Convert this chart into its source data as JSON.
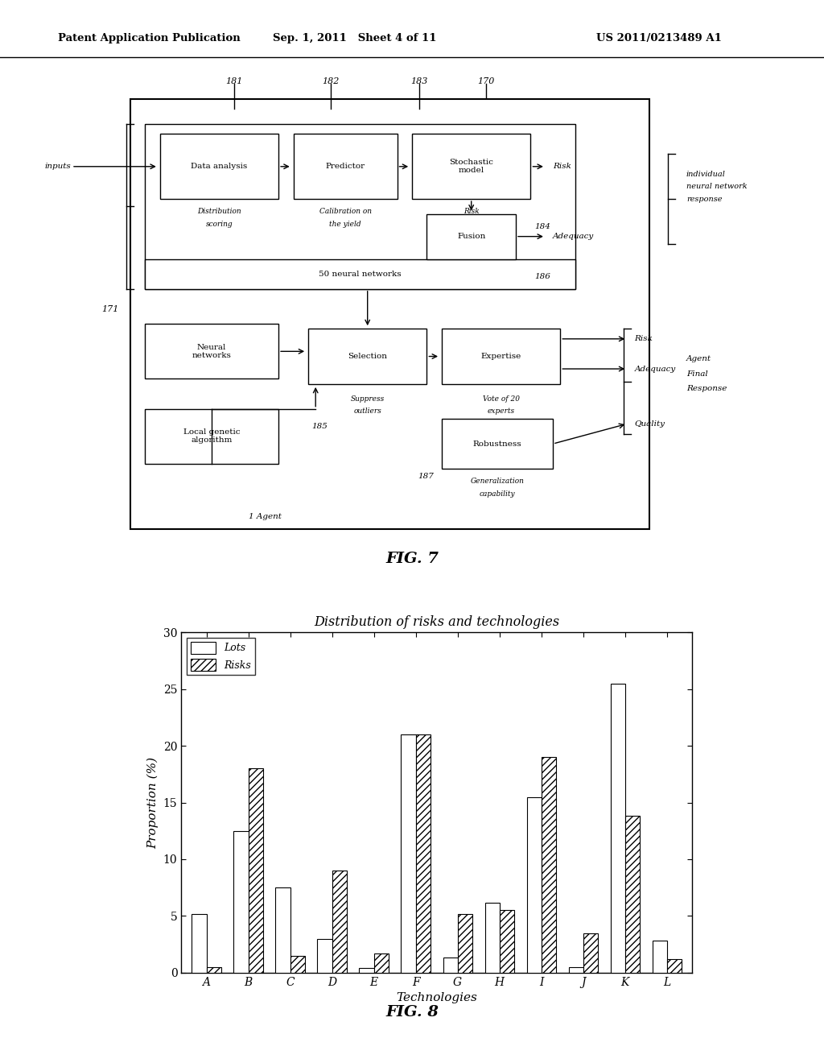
{
  "header_left": "Patent Application Publication",
  "header_mid": "Sep. 1, 2011   Sheet 4 of 11",
  "header_right": "US 2011/0213489 A1",
  "fig7_label": "FIG. 7",
  "fig8_label": "FIG. 8",
  "chart_title": "Distribution of risks and technologies",
  "chart_xlabel": "Technologies",
  "chart_ylabel": "Proportion (%)",
  "categories": [
    "A",
    "B",
    "C",
    "D",
    "E",
    "F",
    "G",
    "H",
    "I",
    "J",
    "K",
    "L"
  ],
  "lots_values": [
    5.2,
    12.5,
    7.5,
    3.0,
    0.4,
    21.0,
    1.3,
    6.2,
    15.5,
    0.5,
    25.5,
    2.8
  ],
  "risks_values": [
    0.5,
    18.0,
    1.5,
    9.0,
    1.7,
    21.0,
    5.2,
    5.5,
    19.0,
    3.5,
    13.8,
    1.2
  ],
  "yticks": [
    0,
    5,
    10,
    15,
    20,
    25,
    30
  ],
  "ylim": [
    0,
    30
  ],
  "bg_color": "#ffffff",
  "bar_width": 0.35
}
